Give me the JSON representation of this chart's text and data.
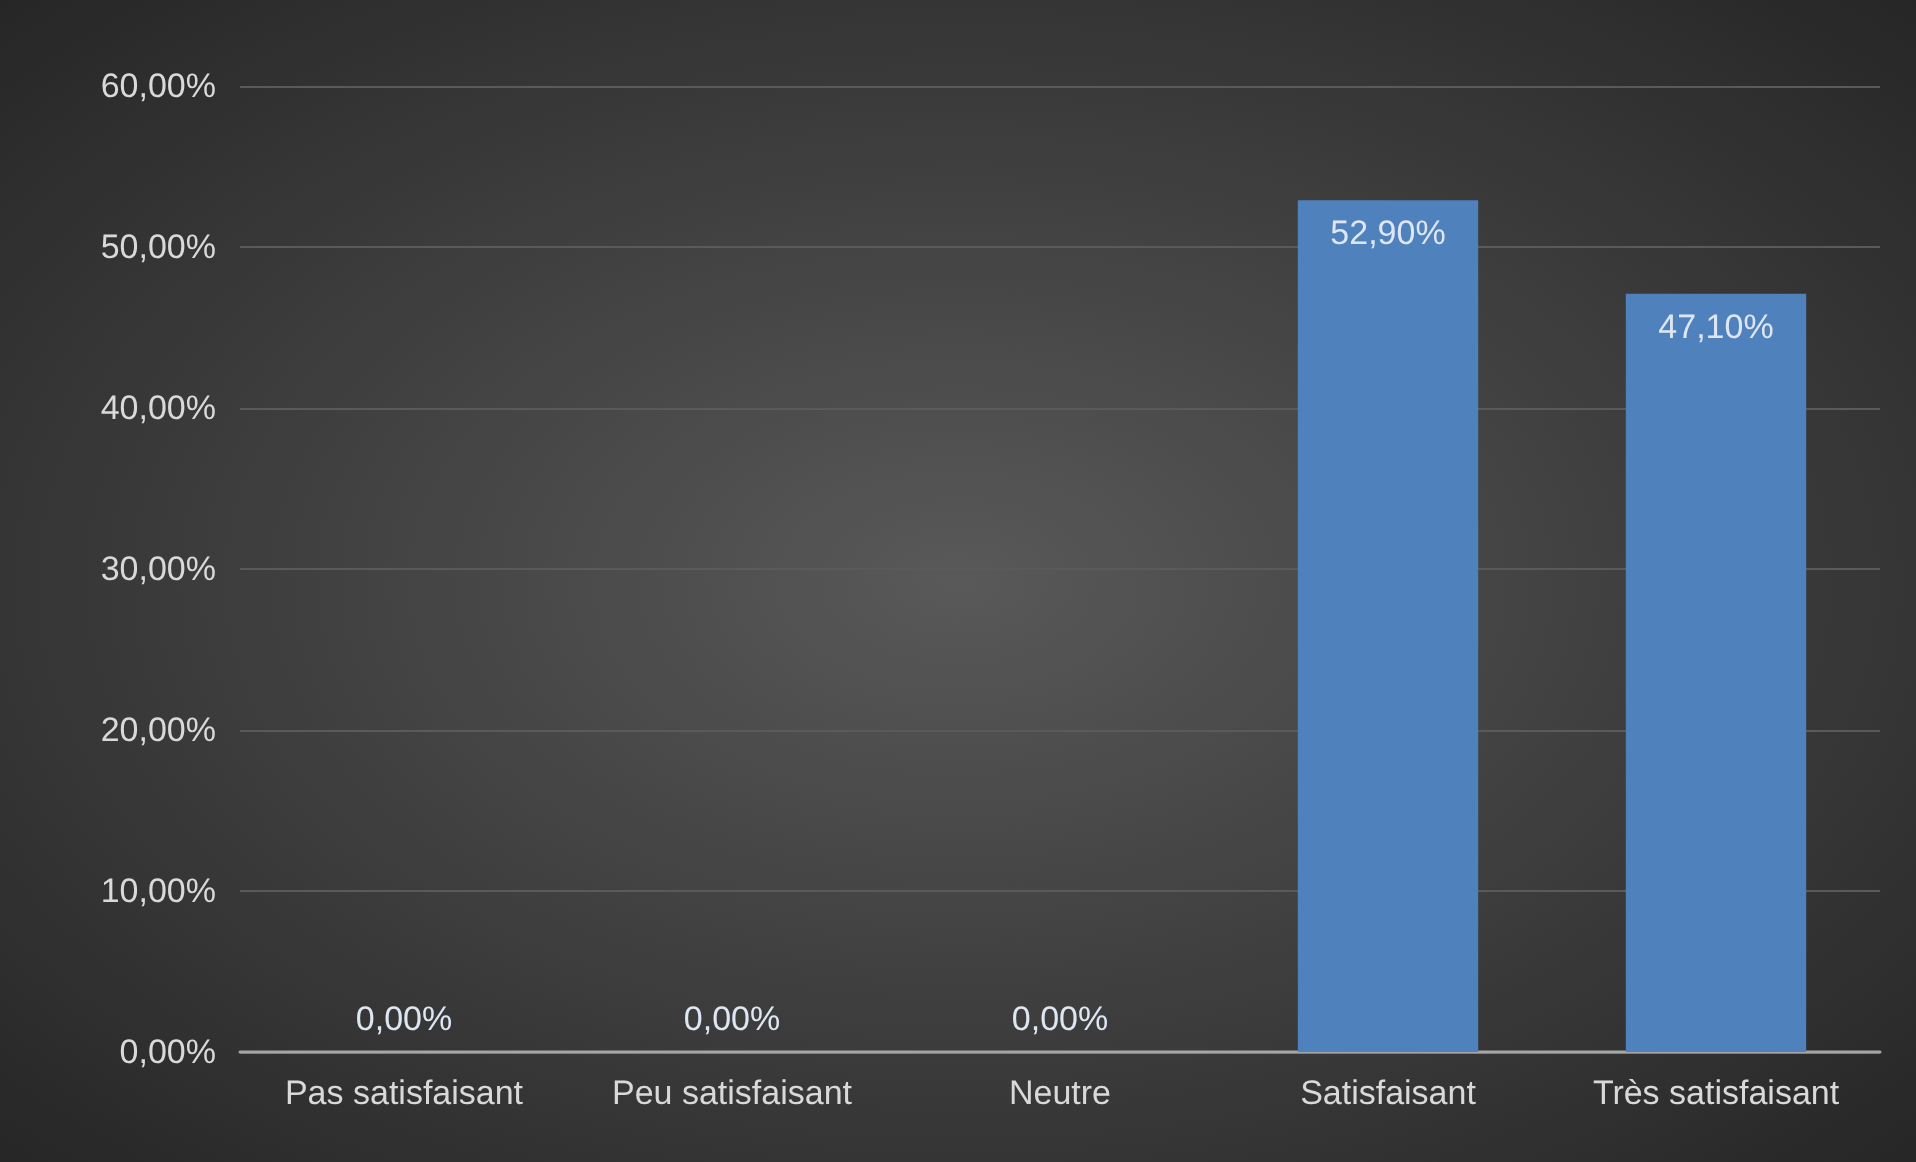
{
  "chart_data": {
    "type": "bar",
    "categories": [
      "Pas satisfaisant",
      "Peu satisfaisant",
      "Neutre",
      "Satisfaisant",
      "Très satisfaisant"
    ],
    "values": [
      0,
      0,
      0,
      52.9,
      47.1
    ],
    "value_labels": [
      "0,00%",
      "0,00%",
      "0,00%",
      "52,90%",
      "47,10%"
    ],
    "color": "#4f81bd",
    "ylim": [
      0,
      60
    ],
    "yticks": [
      {
        "value": 0,
        "label": "0,00%"
      },
      {
        "value": 10,
        "label": "10,00%"
      },
      {
        "value": 20,
        "label": "20,00%"
      },
      {
        "value": 30,
        "label": "30,00%"
      },
      {
        "value": 40,
        "label": "40,00%"
      },
      {
        "value": 50,
        "label": "50,00%"
      },
      {
        "value": 60,
        "label": "60,00%"
      }
    ],
    "grid": "y"
  }
}
